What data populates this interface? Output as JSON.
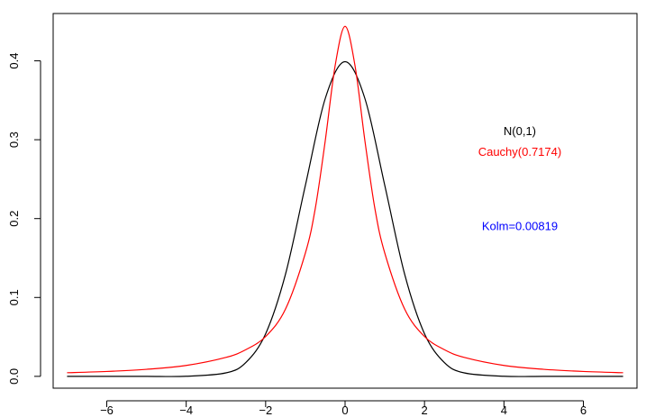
{
  "chart_data": {
    "type": "line",
    "title": "",
    "xlabel": "",
    "ylabel": "",
    "xlim": [
      -7.35,
      7.35
    ],
    "ylim": [
      -0.015,
      0.46
    ],
    "x_ticks": [
      -6,
      -4,
      -2,
      0,
      2,
      4,
      6
    ],
    "x_tick_labels": [
      "−6",
      "−4",
      "−2",
      "0",
      "2",
      "4",
      "6"
    ],
    "y_ticks": [
      0.0,
      0.1,
      0.2,
      0.3,
      0.4
    ],
    "y_tick_labels": [
      "0.0",
      "0.1",
      "0.2",
      "0.3",
      "0.4"
    ],
    "grid": false,
    "series": [
      {
        "name": "N(0,1)",
        "color": "#000000",
        "x": [
          -7,
          -6,
          -5,
          -4,
          -3,
          -2.5,
          -2,
          -1.5,
          -1,
          -0.5,
          0,
          0.5,
          1,
          1.5,
          2,
          2.5,
          3,
          4,
          5,
          6,
          7
        ],
        "y": [
          0.0,
          0.0,
          0.0,
          0.0001,
          0.0044,
          0.0175,
          0.054,
          0.1295,
          0.242,
          0.3521,
          0.3989,
          0.3521,
          0.242,
          0.1295,
          0.054,
          0.0175,
          0.0044,
          0.0001,
          0.0,
          0.0,
          0.0
        ]
      },
      {
        "name": "Cauchy(0.7174)",
        "color": "#ff0000",
        "x": [
          -7,
          -6,
          -5,
          -4,
          -3,
          -2.5,
          -2,
          -1.5,
          -1,
          -0.75,
          -0.5,
          -0.25,
          0,
          0.25,
          0.5,
          0.75,
          1,
          1.5,
          2,
          2.5,
          3,
          4,
          5,
          6,
          7
        ],
        "y": [
          0.0046,
          0.0062,
          0.0089,
          0.0138,
          0.024,
          0.0338,
          0.0505,
          0.0853,
          0.1562,
          0.2129,
          0.2984,
          0.3939,
          0.4437,
          0.3939,
          0.2984,
          0.2129,
          0.1562,
          0.0853,
          0.0505,
          0.0338,
          0.024,
          0.0138,
          0.0089,
          0.0062,
          0.0046
        ]
      }
    ],
    "annotations": [
      {
        "text": "N(0,1)",
        "x": 4.4,
        "y": 0.306,
        "color": "#000000"
      },
      {
        "text": "Cauchy(0.7174)",
        "x": 4.4,
        "y": 0.2795,
        "color": "#ff0000"
      },
      {
        "text": "Kolm=0.00819",
        "x": 4.4,
        "y": 0.1855,
        "color": "#0000ff"
      }
    ]
  }
}
